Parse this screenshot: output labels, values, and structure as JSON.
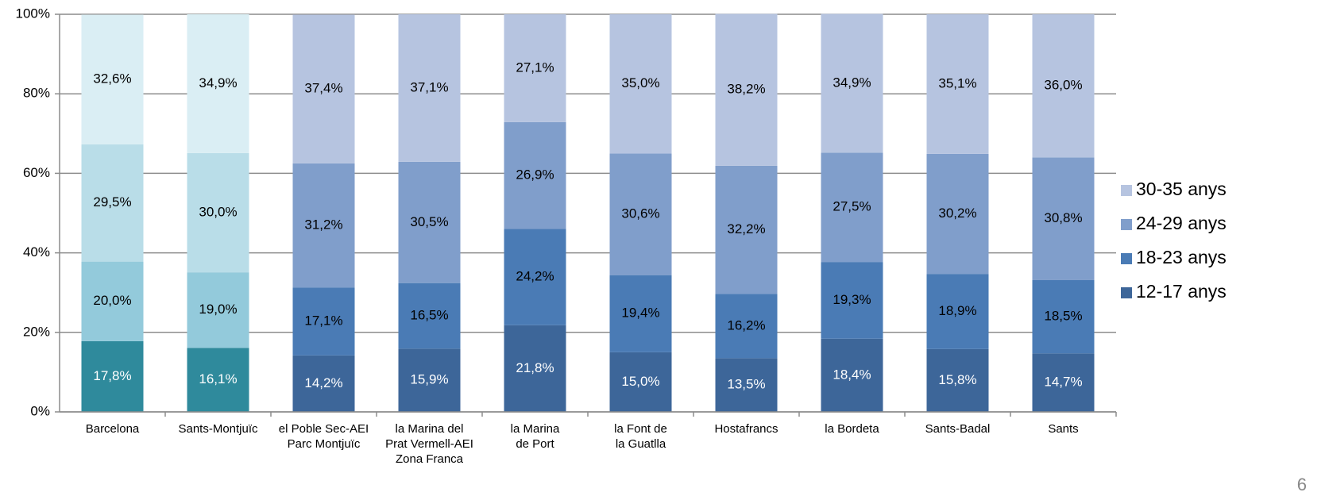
{
  "chart_data": {
    "type": "stacked_bar_100",
    "categories": [
      [
        "Barcelona"
      ],
      [
        "Sants-Montjuïc"
      ],
      [
        "el Poble Sec-AEI",
        "Parc Montjuïc"
      ],
      [
        "la Marina del",
        "Prat Vermell-AEI",
        "Zona Franca"
      ],
      [
        "la Marina",
        "de Port"
      ],
      [
        "la Font de",
        "la Guatlla"
      ],
      [
        "Hostafrancs"
      ],
      [
        "la Bordeta"
      ],
      [
        "Sants-Badal"
      ],
      [
        "Sants"
      ]
    ],
    "series": [
      {
        "name": "12-17 anys",
        "color": "#3d6699",
        "label_color": "#ffffff",
        "point_colors": [
          "#2f8a9c",
          "#2f8a9c",
          "#3d6699",
          "#3d6699",
          "#3d6699",
          "#3d6699",
          "#3d6699",
          "#3d6699",
          "#3d6699",
          "#3d6699"
        ],
        "values": [
          17.8,
          16.1,
          14.2,
          15.9,
          21.8,
          15.0,
          13.5,
          18.4,
          15.8,
          14.7
        ],
        "value_labels": [
          "17,8%",
          "16,1%",
          "14,2%",
          "15,9%",
          "21,8%",
          "15,0%",
          "13,5%",
          "18,4%",
          "15,8%",
          "14,7%"
        ]
      },
      {
        "name": "18-23 anys",
        "color": "#4a7bb5",
        "label_color": "#000000",
        "point_colors": [
          "#93cadb",
          "#93cadb",
          "#4a7bb5",
          "#4a7bb5",
          "#4a7bb5",
          "#4a7bb5",
          "#4a7bb5",
          "#4a7bb5",
          "#4a7bb5",
          "#4a7bb5"
        ],
        "values": [
          20.0,
          19.0,
          17.1,
          16.5,
          24.2,
          19.4,
          16.2,
          19.3,
          18.9,
          18.5
        ],
        "value_labels": [
          "20,0%",
          "19,0%",
          "17,1%",
          "16,5%",
          "24,2%",
          "19,4%",
          "16,2%",
          "19,3%",
          "18,9%",
          "18,5%"
        ]
      },
      {
        "name": "24-29 anys",
        "color": "#809ecb",
        "label_color": "#000000",
        "point_colors": [
          "#b9dde8",
          "#b9dde8",
          "#809ecb",
          "#809ecb",
          "#809ecb",
          "#809ecb",
          "#809ecb",
          "#809ecb",
          "#809ecb",
          "#809ecb"
        ],
        "values": [
          29.5,
          30.0,
          31.2,
          30.5,
          26.9,
          30.6,
          32.2,
          27.5,
          30.2,
          30.8
        ],
        "value_labels": [
          "29,5%",
          "30,0%",
          "31,2%",
          "30,5%",
          "26,9%",
          "30,6%",
          "32,2%",
          "27,5%",
          "30,2%",
          "30,8%"
        ]
      },
      {
        "name": "30-35 anys",
        "color": "#b6c4e0",
        "label_color": "#000000",
        "point_colors": [
          "#daeef4",
          "#daeef4",
          "#b6c4e0",
          "#b6c4e0",
          "#b6c4e0",
          "#b6c4e0",
          "#b6c4e0",
          "#b6c4e0",
          "#b6c4e0",
          "#b6c4e0"
        ],
        "values": [
          32.6,
          34.9,
          37.4,
          37.1,
          27.1,
          35.0,
          38.2,
          34.9,
          35.1,
          36.0
        ],
        "value_labels": [
          "32,6%",
          "34,9%",
          "37,4%",
          "37,1%",
          "27,1%",
          "35,0%",
          "38,2%",
          "34,9%",
          "35,1%",
          "36,0%"
        ]
      }
    ],
    "ylim": [
      0,
      100
    ],
    "yticks": [
      {
        "value": 0,
        "label": "0%"
      },
      {
        "value": 20,
        "label": "20%"
      },
      {
        "value": 40,
        "label": "40%"
      },
      {
        "value": 60,
        "label": "60%"
      },
      {
        "value": 80,
        "label": "80%"
      },
      {
        "value": 100,
        "label": "100%"
      }
    ],
    "grid": true,
    "legend": "right"
  },
  "page_number": "6"
}
